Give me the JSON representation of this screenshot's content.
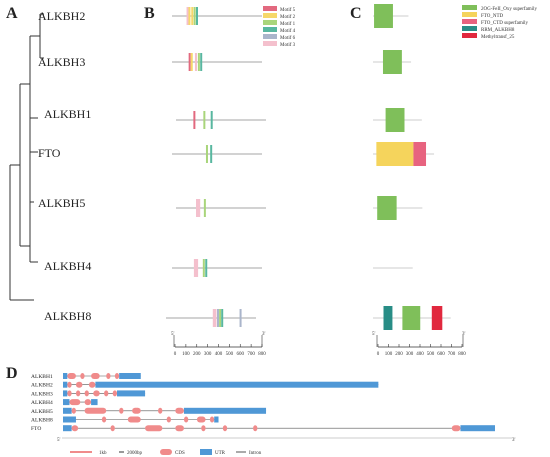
{
  "panels": {
    "A": "A",
    "B": "B",
    "C": "C",
    "D": "D"
  },
  "genes": [
    "ALKBH2",
    "ALKBH3",
    "ALKBH1",
    "FTO",
    "ALKBH5",
    "ALKBH4",
    "ALKBH8"
  ],
  "colors": {
    "motif5": "#e2697f",
    "motif2": "#f6d86a",
    "motif1": "#a9d57b",
    "motif4": "#58b7a0",
    "motif6": "#aab5cb",
    "motif3": "#f4c0cd",
    "ogfe": "#7fbf5a",
    "fto_ntd": "#f5d45c",
    "fto_ctd": "#e7637f",
    "rrm": "#288d86",
    "methyl": "#e1283e",
    "cds": "#f08b8b",
    "utr": "#4f98d6",
    "intron": "#555555",
    "axis": "#333333",
    "tree": "#333333"
  },
  "motif_legend": [
    {
      "key": "motif5",
      "label": "Motif 5"
    },
    {
      "key": "motif2",
      "label": "Motif 2"
    },
    {
      "key": "motif1",
      "label": "Motif 1"
    },
    {
      "key": "motif4",
      "label": "Motif 4"
    },
    {
      "key": "motif6",
      "label": "Motif 6"
    },
    {
      "key": "motif3",
      "label": "Motif 3"
    }
  ],
  "domain_legend": [
    {
      "key": "ogfe",
      "label": "2OG-FeII_Oxy superfamily"
    },
    {
      "key": "fto_ntd",
      "label": "FTO_NTD"
    },
    {
      "key": "fto_ctd",
      "label": "FTO_CTD superfamily"
    },
    {
      "key": "rrm",
      "label": "RRM_ALKBH8"
    },
    {
      "key": "methyl",
      "label": "Methyltransf_25"
    }
  ],
  "protein_lengths": [
    261,
    286,
    389,
    505,
    394,
    302,
    664
  ],
  "motifs": [
    [
      {
        "m": "motif3",
        "s": 110,
        "e": 125
      },
      {
        "m": "motif2",
        "s": 128,
        "e": 140
      },
      {
        "m": "motif2",
        "s": 155,
        "e": 166
      },
      {
        "m": "motif1",
        "s": 178,
        "e": 190
      },
      {
        "m": "motif4",
        "s": 200,
        "e": 212
      }
    ],
    [
      {
        "m": "motif5",
        "s": 130,
        "e": 140
      },
      {
        "m": "motif2",
        "s": 150,
        "e": 165
      },
      {
        "m": "motif3",
        "s": 190,
        "e": 205
      },
      {
        "m": "motif1",
        "s": 218,
        "e": 230
      },
      {
        "m": "motif4",
        "s": 240,
        "e": 252
      }
    ],
    [
      {
        "m": "motif5",
        "s": 175,
        "e": 185
      },
      {
        "m": "motif1",
        "s": 270,
        "e": 282
      },
      {
        "m": "motif4",
        "s": 340,
        "e": 352
      }
    ],
    [
      {
        "m": "motif1",
        "s": 295,
        "e": 307
      },
      {
        "m": "motif4",
        "s": 335,
        "e": 347
      }
    ],
    [
      {
        "m": "motif3",
        "s": 200,
        "e": 240
      },
      {
        "m": "motif1",
        "s": 275,
        "e": 287
      }
    ],
    [
      {
        "m": "motif3",
        "s": 180,
        "e": 220
      },
      {
        "m": "motif1",
        "s": 265,
        "e": 277
      },
      {
        "m": "motif4",
        "s": 288,
        "e": 300
      }
    ],
    [
      {
        "m": "motif3",
        "s": 360,
        "e": 395
      },
      {
        "m": "motif6",
        "s": 400,
        "e": 412
      },
      {
        "m": "motif1",
        "s": 420,
        "e": 432
      },
      {
        "m": "motif4",
        "s": 440,
        "e": 452
      },
      {
        "m": "motif6",
        "s": 615,
        "e": 627
      }
    ]
  ],
  "motif_scale": {
    "ticks": [
      "0",
      "100",
      "200",
      "300",
      "400",
      "500",
      "600",
      "700",
      "800"
    ],
    "start_label": "5'",
    "end_label": "3'"
  },
  "domains": [
    [
      {
        "d": "ogfe",
        "s": 10,
        "e": 190
      }
    ],
    [
      {
        "d": "ogfe",
        "s": 95,
        "e": 275
      }
    ],
    [
      {
        "d": "ogfe",
        "s": 120,
        "e": 300
      }
    ],
    [
      {
        "d": "fto_ntd",
        "s": 32,
        "e": 385
      },
      {
        "d": "fto_ctd",
        "s": 385,
        "e": 505
      }
    ],
    [
      {
        "d": "ogfe",
        "s": 40,
        "e": 225
      }
    ],
    [],
    [
      {
        "d": "rrm",
        "s": 100,
        "e": 185
      },
      {
        "d": "ogfe",
        "s": 280,
        "e": 450
      },
      {
        "d": "methyl",
        "s": 560,
        "e": 660
      }
    ]
  ],
  "domain_scale": {
    "ticks": [
      "0",
      "100",
      "200",
      "300",
      "400",
      "500",
      "600",
      "700",
      "800"
    ],
    "start_label": "5'",
    "end_label": "3'"
  },
  "gene_structures": [
    {
      "name": "ALKBH1",
      "len": 0.18,
      "exons": [
        {
          "t": "utr",
          "s": 0.0,
          "e": 0.01
        },
        {
          "t": "cds",
          "s": 0.01,
          "e": 0.03
        },
        {
          "t": "cds",
          "s": 0.04,
          "e": 0.05
        },
        {
          "t": "cds",
          "s": 0.065,
          "e": 0.085
        },
        {
          "t": "cds",
          "s": 0.1,
          "e": 0.11
        },
        {
          "t": "cds",
          "s": 0.12,
          "e": 0.13
        },
        {
          "t": "utr",
          "s": 0.13,
          "e": 0.18
        }
      ]
    },
    {
      "name": "ALKBH2",
      "len": 0.73,
      "exons": [
        {
          "t": "utr",
          "s": 0.0,
          "e": 0.01
        },
        {
          "t": "cds",
          "s": 0.01,
          "e": 0.02
        },
        {
          "t": "cds",
          "s": 0.03,
          "e": 0.045
        },
        {
          "t": "cds",
          "s": 0.06,
          "e": 0.075
        },
        {
          "t": "utr",
          "s": 0.075,
          "e": 0.73
        }
      ]
    },
    {
      "name": "ALKBH3",
      "len": 0.19,
      "exons": [
        {
          "t": "utr",
          "s": 0.0,
          "e": 0.01
        },
        {
          "t": "cds",
          "s": 0.01,
          "e": 0.02
        },
        {
          "t": "cds",
          "s": 0.03,
          "e": 0.04
        },
        {
          "t": "cds",
          "s": 0.05,
          "e": 0.06
        },
        {
          "t": "cds",
          "s": 0.07,
          "e": 0.085
        },
        {
          "t": "cds",
          "s": 0.095,
          "e": 0.105
        },
        {
          "t": "cds",
          "s": 0.115,
          "e": 0.125
        },
        {
          "t": "utr",
          "s": 0.125,
          "e": 0.19
        }
      ]
    },
    {
      "name": "ALKBH4",
      "len": 0.08,
      "exons": [
        {
          "t": "utr",
          "s": 0.0,
          "e": 0.015
        },
        {
          "t": "cds",
          "s": 0.015,
          "e": 0.04
        },
        {
          "t": "cds",
          "s": 0.05,
          "e": 0.065
        },
        {
          "t": "utr",
          "s": 0.065,
          "e": 0.08
        }
      ]
    },
    {
      "name": "ALKBH5",
      "len": 0.47,
      "exons": [
        {
          "t": "utr",
          "s": 0.0,
          "e": 0.02
        },
        {
          "t": "cds",
          "s": 0.02,
          "e": 0.03
        },
        {
          "t": "cds",
          "s": 0.05,
          "e": 0.1
        },
        {
          "t": "cds",
          "s": 0.13,
          "e": 0.14
        },
        {
          "t": "cds",
          "s": 0.16,
          "e": 0.18
        },
        {
          "t": "cds",
          "s": 0.22,
          "e": 0.23
        },
        {
          "t": "cds",
          "s": 0.26,
          "e": 0.28
        },
        {
          "t": "utr",
          "s": 0.28,
          "e": 0.47
        }
      ]
    },
    {
      "name": "ALKBH8",
      "len": 0.36,
      "exons": [
        {
          "t": "utr",
          "s": 0.0,
          "e": 0.03
        },
        {
          "t": "cds",
          "s": 0.09,
          "e": 0.1
        },
        {
          "t": "cds",
          "s": 0.15,
          "e": 0.18
        },
        {
          "t": "cds",
          "s": 0.24,
          "e": 0.25
        },
        {
          "t": "cds",
          "s": 0.28,
          "e": 0.29
        },
        {
          "t": "cds",
          "s": 0.31,
          "e": 0.33
        },
        {
          "t": "cds",
          "s": 0.34,
          "e": 0.35
        },
        {
          "t": "utr",
          "s": 0.35,
          "e": 0.36
        }
      ]
    },
    {
      "name": "FTO",
      "len": 1.0,
      "exons": [
        {
          "t": "utr",
          "s": 0.0,
          "e": 0.02
        },
        {
          "t": "cds",
          "s": 0.02,
          "e": 0.035
        },
        {
          "t": "cds",
          "s": 0.11,
          "e": 0.12
        },
        {
          "t": "cds",
          "s": 0.19,
          "e": 0.23
        },
        {
          "t": "cds",
          "s": 0.26,
          "e": 0.28
        },
        {
          "t": "cds",
          "s": 0.32,
          "e": 0.33
        },
        {
          "t": "cds",
          "s": 0.37,
          "e": 0.38
        },
        {
          "t": "cds",
          "s": 0.44,
          "e": 0.45
        },
        {
          "t": "cds",
          "s": 0.9,
          "e": 0.92
        },
        {
          "t": "utr",
          "s": 0.92,
          "e": 1.0
        }
      ]
    }
  ],
  "gene_scale": {
    "start_label": "5'",
    "end_label": "3'"
  },
  "gene_legend": {
    "kb": "1kb",
    "bp": "2000bp",
    "cds": "CDS",
    "utr": "UTR",
    "intron": "Intron"
  }
}
